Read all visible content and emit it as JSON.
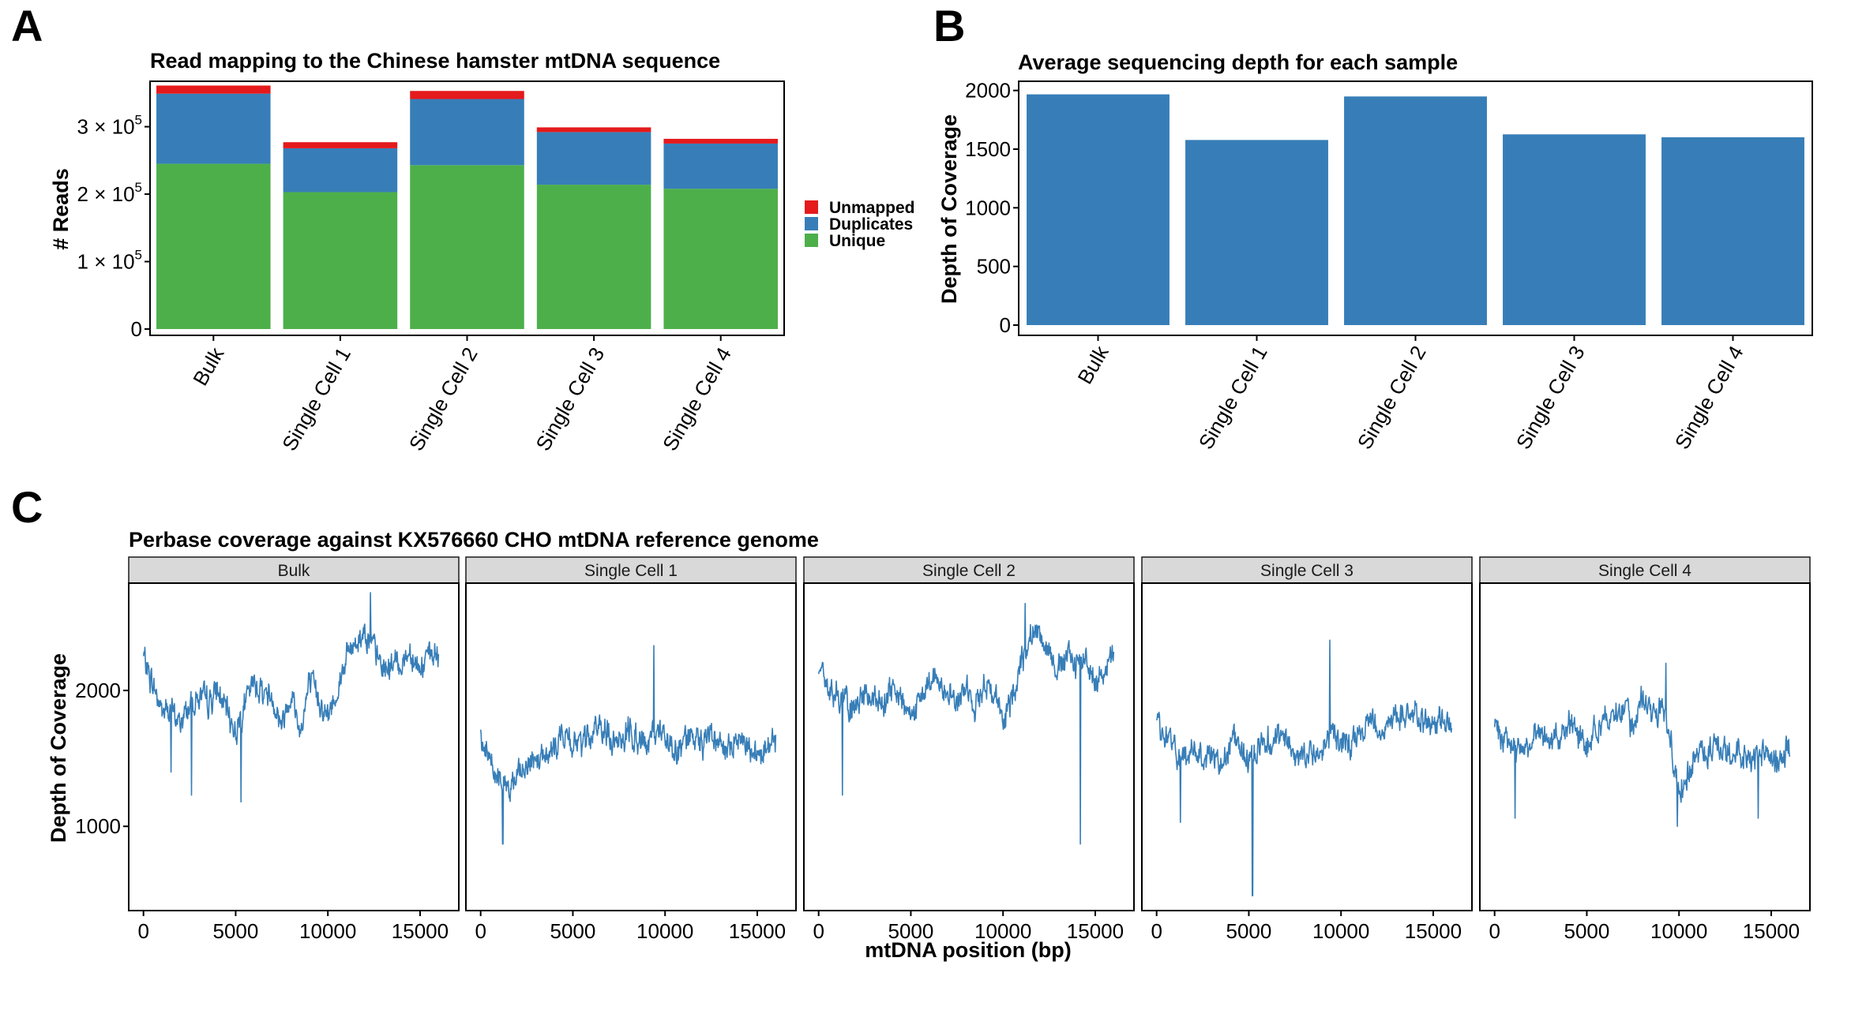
{
  "panels": {
    "a": {
      "letter": "A"
    },
    "b": {
      "letter": "B"
    },
    "c": {
      "letter": "C"
    }
  },
  "legend": {
    "title": ""
  },
  "chart_data": [
    {
      "type": "bar",
      "stacked": true,
      "title": "Read mapping to the Chinese hamster mtDNA sequence",
      "xlabel": "",
      "ylabel": "# Reads",
      "categories": [
        "Bulk",
        "Single Cell 1",
        "Single Cell 2",
        "Single Cell 3",
        "Single Cell 4"
      ],
      "ylim": [
        0,
        365000
      ],
      "yticks": [
        0,
        100000,
        200000,
        300000
      ],
      "ytick_labels": [
        {
          "mant": "0",
          "exp": ""
        },
        {
          "mant": "1 × 10",
          "exp": "5"
        },
        {
          "mant": "2 × 10",
          "exp": "5"
        },
        {
          "mant": "3 × 10",
          "exp": "5"
        }
      ],
      "series": [
        {
          "name": "Unique",
          "color": "#4DAF4A",
          "values": [
            245000,
            203000,
            243000,
            214000,
            208000
          ]
        },
        {
          "name": "Duplicates",
          "color": "#377EB8",
          "values": [
            104000,
            65000,
            98000,
            78000,
            67000
          ]
        },
        {
          "name": "Unmapped",
          "color": "#E41A1C",
          "values": [
            12000,
            9000,
            12000,
            7000,
            7000
          ]
        }
      ],
      "legend_order": [
        "Unmapped",
        "Duplicates",
        "Unique"
      ],
      "legend_position": "right",
      "grid": false,
      "x_tick_rotation": -60
    },
    {
      "type": "bar",
      "title": "Average sequencing depth for each sample",
      "xlabel": "",
      "ylabel": "Depth of Coverage",
      "categories": [
        "Bulk",
        "Single Cell 1",
        "Single Cell 2",
        "Single Cell 3",
        "Single Cell 4"
      ],
      "values": [
        1967,
        1578,
        1949,
        1626,
        1601
      ],
      "color": "#377EB8",
      "ylim": [
        0,
        2065
      ],
      "yticks": [
        0,
        500,
        1000,
        1500,
        2000
      ],
      "grid": false,
      "x_tick_rotation": -60
    },
    {
      "type": "line",
      "title": "Perbase coverage against KX576660 CHO mtDNA reference genome",
      "xlabel": "mtDNA position (bp)",
      "ylabel": "Depth of Coverage",
      "color": "#377EB8",
      "xlim": [
        -800,
        17100
      ],
      "ylim": [
        380,
        2790
      ],
      "xticks": [
        0,
        5000,
        10000,
        15000
      ],
      "yticks": [
        1000,
        2000
      ],
      "grid": false,
      "series": [
        {
          "name": "Bulk",
          "x": [
            0,
            500,
            1000,
            1500,
            2000,
            2500,
            3000,
            3500,
            4000,
            4500,
            5000,
            5500,
            6000,
            6500,
            7000,
            7500,
            8000,
            8500,
            9000,
            9500,
            10000,
            10500,
            11000,
            11500,
            12000,
            12500,
            13000,
            13500,
            14000,
            14500,
            15000,
            15500,
            16000
          ],
          "y": [
            2250,
            2050,
            1850,
            1850,
            1750,
            1900,
            1950,
            1900,
            2000,
            1850,
            1700,
            1900,
            2050,
            2000,
            1950,
            1750,
            2000,
            1700,
            2050,
            1950,
            1800,
            2000,
            2250,
            2350,
            2450,
            2300,
            2150,
            2200,
            2200,
            2300,
            2150,
            2250,
            2250
          ]
        },
        {
          "name": "Single Cell 1",
          "x": [
            0,
            500,
            1000,
            1500,
            2000,
            2500,
            3000,
            3500,
            4000,
            4500,
            5000,
            5500,
            6000,
            6500,
            7000,
            7500,
            8000,
            8500,
            9000,
            9500,
            10000,
            10500,
            11000,
            11500,
            12000,
            12500,
            13000,
            13500,
            14000,
            14500,
            15000,
            15500,
            16000
          ],
          "y": [
            1650,
            1500,
            1350,
            1250,
            1400,
            1500,
            1500,
            1550,
            1600,
            1700,
            1600,
            1600,
            1650,
            1750,
            1650,
            1650,
            1700,
            1650,
            1600,
            1700,
            1650,
            1550,
            1600,
            1650,
            1600,
            1700,
            1600,
            1550,
            1650,
            1600,
            1550,
            1600,
            1650
          ]
        },
        {
          "name": "Single Cell 2",
          "x": [
            0,
            500,
            1000,
            1500,
            2000,
            2500,
            3000,
            3500,
            4000,
            4500,
            5000,
            5500,
            6000,
            6500,
            7000,
            7500,
            8000,
            8500,
            9000,
            9500,
            10000,
            10500,
            11000,
            11500,
            12000,
            12500,
            13000,
            13500,
            14000,
            14500,
            15000,
            15500,
            16000
          ],
          "y": [
            2150,
            2050,
            1950,
            1900,
            1850,
            2000,
            1950,
            1850,
            2000,
            1900,
            1800,
            1950,
            2050,
            2050,
            2050,
            1900,
            2050,
            1900,
            2050,
            2000,
            1750,
            1950,
            2250,
            2400,
            2450,
            2300,
            2150,
            2250,
            2200,
            2250,
            2050,
            2150,
            2250
          ]
        },
        {
          "name": "Single Cell 3",
          "x": [
            0,
            500,
            1000,
            1500,
            2000,
            2500,
            3000,
            3500,
            4000,
            4500,
            5000,
            5500,
            6000,
            6500,
            7000,
            7500,
            8000,
            8500,
            9000,
            9500,
            10000,
            10500,
            11000,
            11500,
            12000,
            12500,
            13000,
            13500,
            14000,
            14500,
            15000,
            15500,
            16000
          ],
          "y": [
            1750,
            1650,
            1550,
            1500,
            1600,
            1550,
            1500,
            1450,
            1600,
            1600,
            1500,
            1550,
            1650,
            1650,
            1600,
            1500,
            1550,
            1550,
            1550,
            1700,
            1600,
            1600,
            1700,
            1750,
            1750,
            1700,
            1850,
            1800,
            1850,
            1750,
            1700,
            1750,
            1800
          ]
        },
        {
          "name": "Single Cell 4",
          "x": [
            0,
            500,
            1000,
            1500,
            2000,
            2500,
            3000,
            3500,
            4000,
            4500,
            5000,
            5500,
            6000,
            6500,
            7000,
            7500,
            8000,
            8500,
            9000,
            9500,
            10000,
            10500,
            11000,
            11500,
            12000,
            12500,
            13000,
            13500,
            14000,
            14500,
            15000,
            15500,
            16000
          ],
          "y": [
            1700,
            1650,
            1550,
            1550,
            1650,
            1700,
            1650,
            1650,
            1750,
            1700,
            1600,
            1700,
            1800,
            1850,
            1850,
            1750,
            1950,
            1800,
            1900,
            1700,
            1250,
            1400,
            1550,
            1550,
            1600,
            1500,
            1600,
            1550,
            1500,
            1550,
            1450,
            1500,
            1550
          ]
        }
      ],
      "spikes": [
        {
          "panel": "Bulk",
          "x": 1500,
          "y": 1400
        },
        {
          "panel": "Bulk",
          "x": 2600,
          "y": 1230
        },
        {
          "panel": "Bulk",
          "x": 5300,
          "y": 1180
        },
        {
          "panel": "Bulk",
          "x": 12300,
          "y": 2720
        },
        {
          "panel": "Single Cell 1",
          "x": 1200,
          "y": 870
        },
        {
          "panel": "Single Cell 1",
          "x": 9400,
          "y": 2330
        },
        {
          "panel": "Single Cell 2",
          "x": 1300,
          "y": 1230
        },
        {
          "panel": "Single Cell 2",
          "x": 14200,
          "y": 870
        },
        {
          "panel": "Single Cell 2",
          "x": 11200,
          "y": 2640
        },
        {
          "panel": "Single Cell 3",
          "x": 1300,
          "y": 1030
        },
        {
          "panel": "Single Cell 3",
          "x": 5200,
          "y": 490
        },
        {
          "panel": "Single Cell 3",
          "x": 9400,
          "y": 2370
        },
        {
          "panel": "Single Cell 4",
          "x": 1100,
          "y": 1060
        },
        {
          "panel": "Single Cell 4",
          "x": 9300,
          "y": 2200
        },
        {
          "panel": "Single Cell 4",
          "x": 9900,
          "y": 1000
        },
        {
          "panel": "Single Cell 4",
          "x": 14300,
          "y": 1060
        }
      ]
    }
  ]
}
